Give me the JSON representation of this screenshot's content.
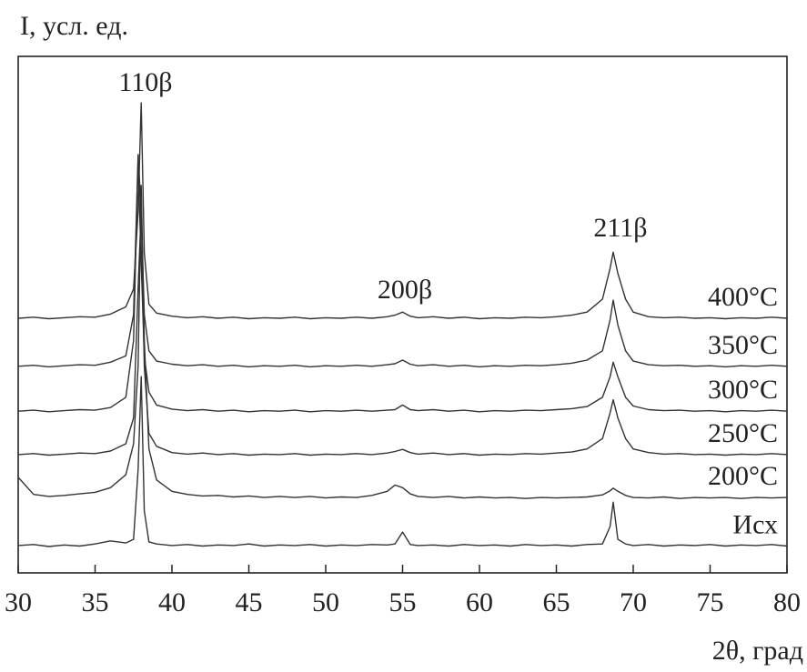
{
  "chart_data": {
    "type": "line",
    "y_label": "I, усл. ед.",
    "x_label": "2θ, град",
    "annotations": [
      "110β",
      "200β",
      "211β"
    ],
    "xlim": [
      30,
      80
    ],
    "xticks": [
      30,
      35,
      40,
      45,
      50,
      55,
      60,
      65,
      70,
      75,
      80
    ],
    "ylim": [
      0,
      100
    ],
    "x": [
      30,
      31,
      32,
      33,
      34,
      35,
      36,
      37,
      37.5,
      37.8,
      38,
      38.2,
      38.5,
      39,
      40,
      41,
      42,
      43,
      44,
      45,
      46,
      47,
      48,
      49,
      50,
      51,
      52,
      53,
      54,
      54.5,
      55,
      55.5,
      56,
      57,
      58,
      59,
      60,
      61,
      62,
      63,
      64,
      65,
      66,
      67,
      68,
      68.5,
      68.7,
      69,
      69.5,
      70,
      71,
      72,
      73,
      74,
      75,
      76,
      77,
      78,
      79,
      80
    ],
    "series": [
      {
        "name": "Исх",
        "color": "#333333",
        "values": [
          5.3,
          5.5,
          5.1,
          5.4,
          5.2,
          5.6,
          6.2,
          5.8,
          6.5,
          20,
          38,
          12,
          6.0,
          5.6,
          5.3,
          5.5,
          5.2,
          5.4,
          5.3,
          5.6,
          5.2,
          5.4,
          5.3,
          5.5,
          5.2,
          5.4,
          5.3,
          5.5,
          5.4,
          5.6,
          7.9,
          5.5,
          5.3,
          5.4,
          5.2,
          5.5,
          5.3,
          5.4,
          5.2,
          5.5,
          5.3,
          5.4,
          5.2,
          5.5,
          5.6,
          9,
          13.7,
          6.5,
          5.6,
          5.3,
          5.5,
          5.2,
          5.4,
          5.3,
          5.5,
          5.2,
          5.4,
          5.3,
          5.5,
          5.2
        ]
      },
      {
        "name": "200°C",
        "color": "#333333",
        "values": [
          18.5,
          15.2,
          14.8,
          15.0,
          15.3,
          15.6,
          16.5,
          19,
          25,
          40,
          75,
          45,
          24,
          18,
          15.8,
          15.2,
          14.9,
          15.0,
          14.7,
          14.9,
          14.6,
          14.8,
          14.6,
          14.8,
          14.5,
          14.7,
          14.6,
          15.0,
          15.8,
          17.0,
          16.5,
          15.3,
          14.8,
          14.6,
          14.8,
          14.5,
          14.7,
          14.5,
          14.6,
          14.4,
          14.6,
          14.5,
          14.6,
          14.7,
          15.1,
          15.9,
          16.4,
          15.8,
          15.0,
          14.6,
          14.5,
          14.7,
          14.4,
          14.6,
          14.5,
          14.6,
          14.4,
          14.6,
          14.5,
          14.6
        ]
      },
      {
        "name": "250°C",
        "color": "#333333",
        "values": [
          22.9,
          23.1,
          22.8,
          23.0,
          23.2,
          23.1,
          23.6,
          25,
          30,
          55,
          70,
          40,
          27,
          24.5,
          23.3,
          23.0,
          23.2,
          22.9,
          23.1,
          22.8,
          23.0,
          22.9,
          23.1,
          22.8,
          23.0,
          22.9,
          23.1,
          22.9,
          23.2,
          23.5,
          23.9,
          23.3,
          23.0,
          23.2,
          22.9,
          23.1,
          22.8,
          23.0,
          22.9,
          23.1,
          23.0,
          23.2,
          23.4,
          24,
          26,
          31,
          33.5,
          30,
          26,
          24,
          23.3,
          23.0,
          23.1,
          22.9,
          23.0,
          22.8,
          23.0,
          22.9,
          23.1,
          22.9
        ]
      },
      {
        "name": "300°C",
        "color": "#333333",
        "values": [
          31.3,
          31.5,
          31.2,
          31.4,
          31.6,
          31.5,
          32,
          34,
          45,
          80,
          60,
          42,
          35,
          32.5,
          31.7,
          31.4,
          31.6,
          31.3,
          31.5,
          31.2,
          31.4,
          31.3,
          31.5,
          31.2,
          31.4,
          31.3,
          31.5,
          31.3,
          31.5,
          31.6,
          32.5,
          31.6,
          31.4,
          31.6,
          31.3,
          31.5,
          31.2,
          31.4,
          31.3,
          31.5,
          31.4,
          31.6,
          31.8,
          32.2,
          34,
          38,
          40.8,
          38,
          34,
          32.3,
          31.6,
          31.4,
          31.5,
          31.3,
          31.4,
          31.2,
          31.4,
          31.3,
          31.5,
          31.3
        ]
      },
      {
        "name": "350°C",
        "color": "#333333",
        "values": [
          40.0,
          40.2,
          39.9,
          40.1,
          40.3,
          40.2,
          40.8,
          42,
          50,
          81,
          70,
          50,
          43,
          41,
          40.4,
          40.1,
          40.3,
          40.0,
          40.2,
          39.9,
          40.1,
          40.0,
          40.2,
          39.9,
          40.1,
          40.0,
          40.2,
          40.0,
          40.3,
          40.5,
          41.2,
          40.4,
          40.1,
          40.3,
          40.0,
          40.2,
          39.9,
          40.1,
          40.0,
          40.2,
          40.1,
          40.3,
          40.6,
          41.2,
          43,
          49,
          52.8,
          48,
          43,
          41,
          40.3,
          40.1,
          40.2,
          40.0,
          40.1,
          39.9,
          40.1,
          40.0,
          40.2,
          40.0
        ]
      },
      {
        "name": "400°C",
        "color": "#333333",
        "values": [
          49.3,
          49.5,
          49.2,
          49.4,
          49.6,
          49.5,
          50.1,
          51.5,
          55,
          70,
          91,
          62,
          52,
          50.3,
          49.7,
          49.4,
          49.6,
          49.3,
          49.5,
          49.2,
          49.4,
          49.3,
          49.5,
          49.2,
          49.4,
          49.3,
          49.5,
          49.3,
          49.6,
          49.9,
          50.5,
          49.7,
          49.4,
          49.6,
          49.3,
          49.5,
          49.2,
          49.4,
          49.3,
          49.5,
          49.4,
          49.6,
          49.9,
          50.5,
          53,
          59,
          62.1,
          58,
          53,
          50.5,
          49.6,
          49.4,
          49.5,
          49.3,
          49.4,
          49.2,
          49.4,
          49.3,
          49.5,
          49.3
        ]
      }
    ]
  }
}
